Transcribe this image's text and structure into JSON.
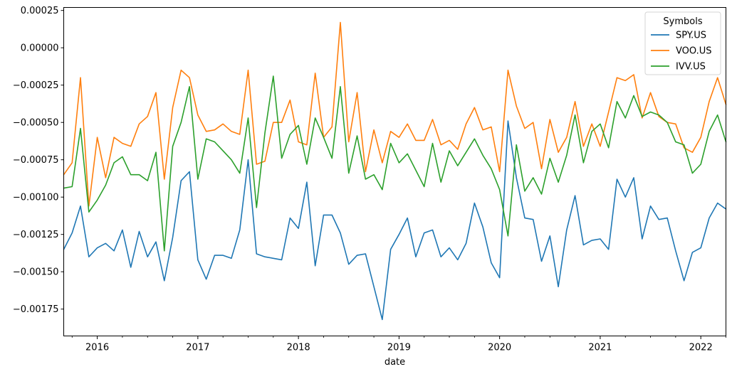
{
  "chart_data": {
    "type": "line",
    "title": "",
    "xlabel": "date",
    "ylabel": "",
    "xlim": [
      "2015-09",
      "2022-04"
    ],
    "ylim": [
      -0.00193,
      0.00027
    ],
    "grid": false,
    "legend": {
      "title": "Symbols",
      "position": "top-right"
    },
    "x_ticks": [
      {
        "date": "2016-01",
        "label": "2016"
      },
      {
        "date": "2017-01",
        "label": "2017"
      },
      {
        "date": "2018-01",
        "label": "2018"
      },
      {
        "date": "2019-01",
        "label": "2019"
      },
      {
        "date": "2020-01",
        "label": "2020"
      },
      {
        "date": "2021-01",
        "label": "2021"
      },
      {
        "date": "2022-01",
        "label": "2022"
      }
    ],
    "y_ticks": [
      {
        "value": 0.00025,
        "label": "0.00025"
      },
      {
        "value": 0.0,
        "label": "0.00000"
      },
      {
        "value": -0.00025,
        "label": "−0.00025"
      },
      {
        "value": -0.0005,
        "label": "−0.00050"
      },
      {
        "value": -0.00075,
        "label": "−0.00075"
      },
      {
        "value": -0.001,
        "label": "−0.00100"
      },
      {
        "value": -0.00125,
        "label": "−0.00125"
      },
      {
        "value": -0.0015,
        "label": "−0.00150"
      },
      {
        "value": -0.00175,
        "label": "−0.00175"
      }
    ],
    "x": [
      "2015-09",
      "2015-10",
      "2015-11",
      "2015-12",
      "2016-01",
      "2016-02",
      "2016-03",
      "2016-04",
      "2016-05",
      "2016-06",
      "2016-07",
      "2016-08",
      "2016-09",
      "2016-10",
      "2016-11",
      "2016-12",
      "2017-01",
      "2017-02",
      "2017-03",
      "2017-04",
      "2017-05",
      "2017-06",
      "2017-07",
      "2017-08",
      "2017-09",
      "2017-10",
      "2017-11",
      "2017-12",
      "2018-01",
      "2018-02",
      "2018-03",
      "2018-04",
      "2018-05",
      "2018-06",
      "2018-07",
      "2018-08",
      "2018-09",
      "2018-10",
      "2018-11",
      "2018-12",
      "2019-01",
      "2019-02",
      "2019-03",
      "2019-04",
      "2019-05",
      "2019-06",
      "2019-07",
      "2019-08",
      "2019-09",
      "2019-10",
      "2019-11",
      "2019-12",
      "2020-01",
      "2020-02",
      "2020-03",
      "2020-04",
      "2020-05",
      "2020-06",
      "2020-07",
      "2020-08",
      "2020-09",
      "2020-10",
      "2020-11",
      "2020-12",
      "2021-01",
      "2021-02",
      "2021-03",
      "2021-04",
      "2021-05",
      "2021-06",
      "2021-07",
      "2021-08",
      "2021-09",
      "2021-10",
      "2021-11",
      "2021-12",
      "2022-01",
      "2022-02",
      "2022-03",
      "2022-04"
    ],
    "series": [
      {
        "name": "SPY.US",
        "color": "#1f77b4",
        "values": [
          -0.00135,
          -0.00124,
          -0.00106,
          -0.0014,
          -0.00134,
          -0.00131,
          -0.00136,
          -0.00122,
          -0.00147,
          -0.00123,
          -0.0014,
          -0.0013,
          -0.00156,
          -0.00127,
          -0.00089,
          -0.00083,
          -0.00142,
          -0.00155,
          -0.00139,
          -0.00139,
          -0.00141,
          -0.00122,
          -0.00075,
          -0.00138,
          -0.0014,
          -0.00141,
          -0.00142,
          -0.00114,
          -0.00121,
          -0.0009,
          -0.00146,
          -0.00112,
          -0.00112,
          -0.00124,
          -0.00145,
          -0.00139,
          -0.00138,
          -0.0016,
          -0.00182,
          -0.00135,
          -0.00125,
          -0.00114,
          -0.0014,
          -0.00124,
          -0.00122,
          -0.0014,
          -0.00134,
          -0.00142,
          -0.00131,
          -0.00104,
          -0.0012,
          -0.00144,
          -0.00154,
          -0.00049,
          -0.00087,
          -0.00114,
          -0.00115,
          -0.00143,
          -0.00126,
          -0.0016,
          -0.00122,
          -0.00099,
          -0.00132,
          -0.00129,
          -0.00128,
          -0.00135,
          -0.00088,
          -0.001,
          -0.00087,
          -0.00128,
          -0.00106,
          -0.00115,
          -0.00114,
          -0.00136,
          -0.00156,
          -0.00137,
          -0.00134,
          -0.00114,
          -0.00104,
          -0.00108
        ]
      },
      {
        "name": "VOO.US",
        "color": "#ff7f0e",
        "values": [
          -0.00085,
          -0.00077,
          -0.0002,
          -0.00106,
          -0.0006,
          -0.00087,
          -0.0006,
          -0.00064,
          -0.00066,
          -0.00051,
          -0.00046,
          -0.0003,
          -0.00088,
          -0.0004,
          -0.00015,
          -0.0002,
          -0.00045,
          -0.00056,
          -0.00055,
          -0.00051,
          -0.00056,
          -0.00058,
          -0.00015,
          -0.00078,
          -0.00076,
          -0.0005,
          -0.0005,
          -0.00035,
          -0.00063,
          -0.00065,
          -0.00017,
          -0.0006,
          -0.00053,
          0.00017,
          -0.00063,
          -0.0003,
          -0.00083,
          -0.00055,
          -0.00077,
          -0.00056,
          -0.0006,
          -0.00051,
          -0.00062,
          -0.00062,
          -0.00048,
          -0.00065,
          -0.00062,
          -0.00068,
          -0.00051,
          -0.0004,
          -0.00055,
          -0.00053,
          -0.00083,
          -0.00015,
          -0.00039,
          -0.00054,
          -0.0005,
          -0.00081,
          -0.00048,
          -0.0007,
          -0.0006,
          -0.00036,
          -0.00066,
          -0.00051,
          -0.00066,
          -0.00043,
          -0.0002,
          -0.00022,
          -0.00018,
          -0.00047,
          -0.0003,
          -0.00046,
          -0.0005,
          -0.00051,
          -0.00067,
          -0.0007,
          -0.0006,
          -0.00036,
          -0.0002,
          -0.00038
        ]
      },
      {
        "name": "IVV.US",
        "color": "#2ca02c",
        "values": [
          -0.00094,
          -0.00093,
          -0.00054,
          -0.0011,
          -0.00102,
          -0.00092,
          -0.00077,
          -0.00073,
          -0.00085,
          -0.00085,
          -0.00089,
          -0.0007,
          -0.00136,
          -0.00066,
          -0.0005,
          -0.00026,
          -0.00088,
          -0.00061,
          -0.00063,
          -0.00069,
          -0.00075,
          -0.00084,
          -0.00047,
          -0.00107,
          -0.00057,
          -0.00019,
          -0.00074,
          -0.00058,
          -0.00052,
          -0.00078,
          -0.00047,
          -0.0006,
          -0.00074,
          -0.00026,
          -0.00084,
          -0.00059,
          -0.00088,
          -0.00085,
          -0.00095,
          -0.00064,
          -0.00077,
          -0.00071,
          -0.00082,
          -0.00093,
          -0.00064,
          -0.0009,
          -0.00069,
          -0.00079,
          -0.0007,
          -0.00061,
          -0.00072,
          -0.00081,
          -0.00095,
          -0.00126,
          -0.00065,
          -0.00096,
          -0.00087,
          -0.00098,
          -0.00074,
          -0.0009,
          -0.00072,
          -0.00045,
          -0.00077,
          -0.00056,
          -0.00051,
          -0.00067,
          -0.00036,
          -0.00047,
          -0.00032,
          -0.00046,
          -0.00043,
          -0.00045,
          -0.0005,
          -0.00063,
          -0.00065,
          -0.00084,
          -0.00078,
          -0.00056,
          -0.00045,
          -0.00063
        ]
      }
    ]
  }
}
